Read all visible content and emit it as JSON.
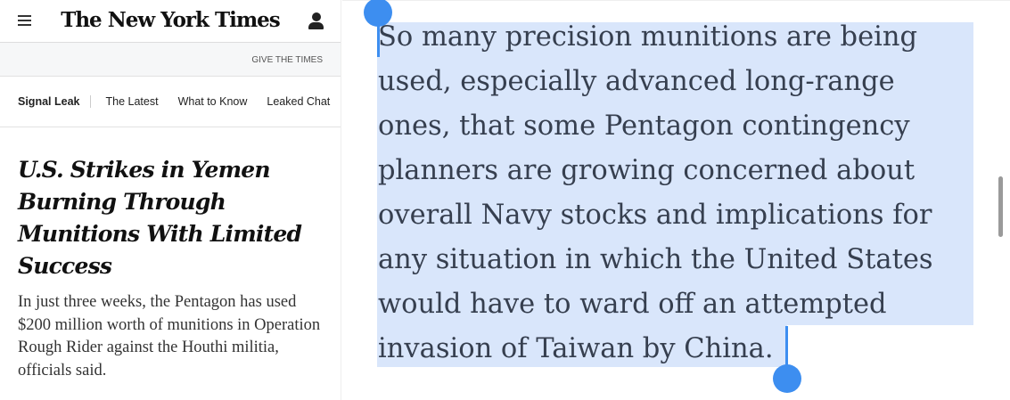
{
  "header": {
    "logo": "The New York Times",
    "menu_icon": "hamburger-icon",
    "account_icon": "user-icon"
  },
  "banner": {
    "give_label": "GIVE THE TIMES"
  },
  "nav": {
    "section": "Signal Leak",
    "items": [
      "The Latest",
      "What to Know",
      "Leaked Chat"
    ]
  },
  "article": {
    "headline": "U.S. Strikes in Yemen Burning Through Munitions With Limited Success",
    "summary": "In just three weeks, the Pentagon has used $200 million worth of munitions in Operation Rough Rider against the Houthi militia, officials said."
  },
  "quote": {
    "lines": [
      "So many precision munitions are being",
      "used, especially advanced long-range",
      "ones, that some Pentagon contingency",
      "planners are growing concerned about",
      "overall Navy stocks and implications for",
      "any situation in which the United States",
      "would have to ward off an attempted",
      "invasion of Taiwan by China."
    ]
  },
  "colors": {
    "selection": "#d9e6fb",
    "handle": "#3d8ef0",
    "text": "#363f4f"
  }
}
